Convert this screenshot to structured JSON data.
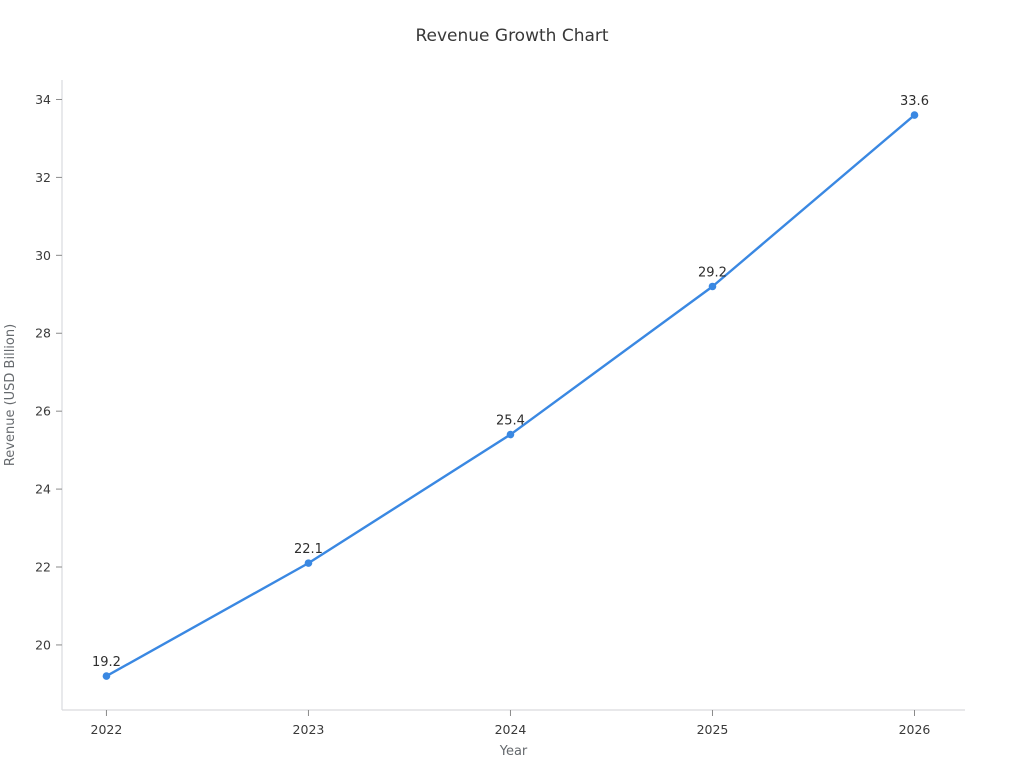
{
  "chart_data": {
    "type": "line",
    "title": "Revenue Growth Chart",
    "xlabel": "Year",
    "ylabel": "Revenue (USD Billion)",
    "x": [
      2022,
      2023,
      2024,
      2025,
      2026
    ],
    "series": [
      {
        "name": "Revenue",
        "values": [
          19.2,
          22.1,
          25.4,
          29.2,
          33.6
        ]
      }
    ],
    "data_labels": [
      "19.2",
      "22.1",
      "25.4",
      "29.2",
      "33.6"
    ],
    "xticks": [
      2022,
      2023,
      2024,
      2025,
      2026
    ],
    "yticks": [
      20,
      22,
      24,
      26,
      28,
      30,
      32,
      34
    ],
    "xlim": [
      2021.78,
      2026.25
    ],
    "ylim": [
      18.33,
      34.5
    ],
    "grid": false,
    "legend": "none",
    "line_color": "#3a88e2",
    "marker_color": "#3a88e2",
    "spine_color": "#d9dade",
    "tick_color": "#8a8a8a"
  }
}
